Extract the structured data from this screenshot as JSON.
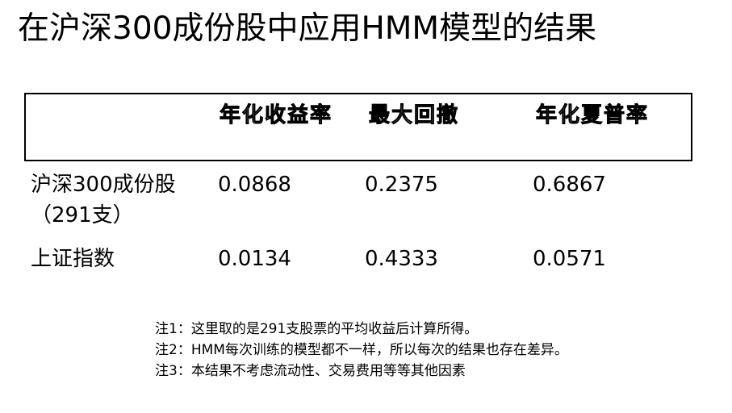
{
  "title": "在沪深300成份股中应用HMM模型的结果",
  "table": {
    "headers": [
      "",
      "年化收益率",
      "最大回撤",
      "年化夏普率"
    ],
    "rows": [
      {
        "name": "沪深300成份股（291支）",
        "values": [
          "0.0868",
          "0.2375",
          "0.6867"
        ]
      },
      {
        "name": "上证指数",
        "values": [
          "0.0134",
          "0.4333",
          "0.0571"
        ]
      }
    ]
  },
  "notes": [
    "注1：这里取的是291支股票的平均收益后计算所得。",
    "注2：HMM每次训练的模型都不一样，所以每次的结果也存在差异。",
    "注3：本结果不考虑流动性、交易费用等等其他因素"
  ]
}
